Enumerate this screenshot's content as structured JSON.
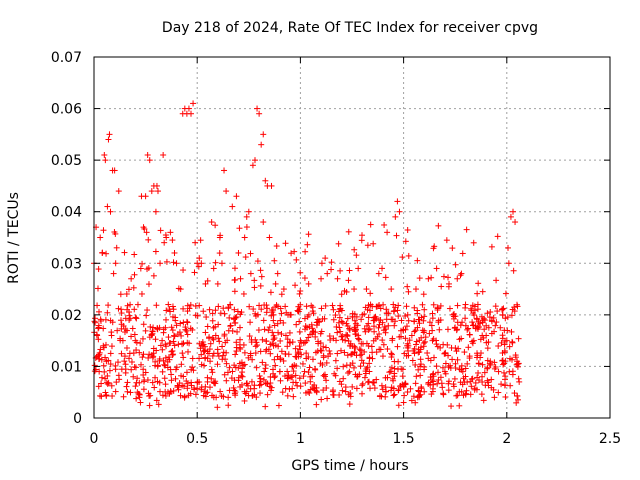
{
  "chart_data": {
    "type": "scatter",
    "title": "Day 218 of 2024, Rate Of TEC Index for receiver cpvg",
    "xlabel": "GPS time / hours",
    "ylabel": "ROTI / TECUs",
    "xlim": [
      0,
      2.5
    ],
    "ylim": [
      0,
      0.07
    ],
    "grid": true,
    "marker": "+",
    "color": "#ff0000",
    "xticks": [
      0,
      0.5,
      1,
      1.5,
      2,
      2.5
    ],
    "xtick_labels": [
      "0",
      "0.5",
      "1",
      "1.5",
      "2",
      "2.5"
    ],
    "yticks": [
      0,
      0.01,
      0.02,
      0.03,
      0.04,
      0.05,
      0.06,
      0.07
    ],
    "ytick_labels": [
      "0",
      "0.01",
      "0.02",
      "0.03",
      "0.04",
      "0.05",
      "0.06",
      "0.07"
    ],
    "series": [
      {
        "name": "ROTI",
        "points": [
          [
            0.0,
            0.03
          ],
          [
            0.01,
            0.037
          ],
          [
            0.015,
            0.016
          ],
          [
            0.02,
            0.012
          ],
          [
            0.025,
            0.009
          ],
          [
            0.03,
            0.035
          ],
          [
            0.04,
            0.032
          ],
          [
            0.045,
            0.014
          ],
          [
            0.05,
            0.051
          ],
          [
            0.055,
            0.05
          ],
          [
            0.06,
            0.011
          ],
          [
            0.065,
            0.041
          ],
          [
            0.07,
            0.054
          ],
          [
            0.075,
            0.055
          ],
          [
            0.08,
            0.04
          ],
          [
            0.085,
            0.016
          ],
          [
            0.09,
            0.048
          ],
          [
            0.095,
            0.028
          ],
          [
            0.1,
            0.048
          ],
          [
            0.105,
            0.03
          ],
          [
            0.11,
            0.033
          ],
          [
            0.12,
            0.044
          ],
          [
            0.13,
            0.024
          ],
          [
            0.14,
            0.015
          ],
          [
            0.15,
            0.012
          ],
          [
            0.16,
            0.021
          ],
          [
            0.17,
            0.019
          ],
          [
            0.18,
            0.027
          ],
          [
            0.19,
            0.008
          ],
          [
            0.2,
            0.015
          ],
          [
            0.21,
            0.005
          ],
          [
            0.22,
            0.004
          ],
          [
            0.225,
            0.003
          ],
          [
            0.23,
            0.043
          ],
          [
            0.24,
            0.037
          ],
          [
            0.25,
            0.043
          ],
          [
            0.255,
            0.036
          ],
          [
            0.26,
            0.051
          ],
          [
            0.27,
            0.05
          ],
          [
            0.28,
            0.044
          ],
          [
            0.29,
            0.045
          ],
          [
            0.3,
            0.04
          ],
          [
            0.305,
            0.045
          ],
          [
            0.31,
            0.044
          ],
          [
            0.32,
            0.03
          ],
          [
            0.33,
            0.015
          ],
          [
            0.335,
            0.051
          ],
          [
            0.34,
            0.034
          ],
          [
            0.35,
            0.035
          ],
          [
            0.36,
            0.022
          ],
          [
            0.37,
            0.036
          ],
          [
            0.38,
            0.013
          ],
          [
            0.39,
            0.032
          ],
          [
            0.4,
            0.03
          ],
          [
            0.41,
            0.006
          ],
          [
            0.42,
            0.025
          ],
          [
            0.43,
            0.059
          ],
          [
            0.44,
            0.06
          ],
          [
            0.45,
            0.059
          ],
          [
            0.46,
            0.06
          ],
          [
            0.47,
            0.059
          ],
          [
            0.48,
            0.061
          ],
          [
            0.49,
            0.034
          ],
          [
            0.5,
            0.03
          ],
          [
            0.51,
            0.031
          ],
          [
            0.52,
            0.03
          ],
          [
            0.53,
            0.013
          ],
          [
            0.54,
            0.026
          ],
          [
            0.55,
            0.007
          ],
          [
            0.56,
            0.021
          ],
          [
            0.57,
            0.038
          ],
          [
            0.58,
            0.029
          ],
          [
            0.59,
            0.016
          ],
          [
            0.6,
            0.026
          ],
          [
            0.61,
            0.035
          ],
          [
            0.62,
            0.03
          ],
          [
            0.63,
            0.048
          ],
          [
            0.64,
            0.044
          ],
          [
            0.65,
            0.004
          ],
          [
            0.66,
            0.022
          ],
          [
            0.67,
            0.041
          ],
          [
            0.68,
            0.021
          ],
          [
            0.69,
            0.043
          ],
          [
            0.7,
            0.032
          ],
          [
            0.71,
            0.027
          ],
          [
            0.72,
            0.008
          ],
          [
            0.73,
            0.035
          ],
          [
            0.74,
            0.039
          ],
          [
            0.75,
            0.04
          ],
          [
            0.76,
            0.028
          ],
          [
            0.77,
            0.049
          ],
          [
            0.78,
            0.05
          ],
          [
            0.79,
            0.06
          ],
          [
            0.8,
            0.059
          ],
          [
            0.81,
            0.053
          ],
          [
            0.82,
            0.055
          ],
          [
            0.83,
            0.046
          ],
          [
            0.84,
            0.045
          ],
          [
            0.85,
            0.035
          ],
          [
            0.86,
            0.045
          ],
          [
            0.87,
            0.014
          ],
          [
            0.88,
            0.026
          ],
          [
            0.89,
            0.028
          ],
          [
            0.9,
            0.009
          ],
          [
            0.91,
            0.024
          ],
          [
            0.92,
            0.025
          ],
          [
            0.93,
            0.016
          ],
          [
            0.94,
            0.02
          ],
          [
            0.95,
            0.02
          ],
          [
            0.96,
            0.008
          ],
          [
            1.0,
            0.015
          ],
          [
            1.02,
            0.009
          ],
          [
            1.04,
            0.026
          ],
          [
            1.06,
            0.006
          ],
          [
            1.08,
            0.018
          ],
          [
            1.1,
            0.027
          ],
          [
            1.12,
            0.031
          ],
          [
            1.13,
            0.028
          ],
          [
            1.14,
            0.013
          ],
          [
            1.16,
            0.021
          ],
          [
            1.18,
            0.027
          ],
          [
            1.2,
            0.024
          ],
          [
            1.22,
            0.006
          ],
          [
            1.24,
            0.014
          ],
          [
            1.26,
            0.025
          ],
          [
            1.28,
            0.029
          ],
          [
            1.3,
            0.02
          ],
          [
            1.32,
            0.025
          ],
          [
            1.34,
            0.022
          ],
          [
            1.36,
            0.019
          ],
          [
            1.38,
            0.028
          ],
          [
            1.4,
            0.012
          ],
          [
            1.42,
            0.036
          ],
          [
            1.44,
            0.025
          ],
          [
            1.45,
            0.022
          ],
          [
            1.46,
            0.039
          ],
          [
            1.47,
            0.042
          ],
          [
            1.48,
            0.04
          ],
          [
            1.5,
            0.003
          ],
          [
            1.52,
            0.02
          ],
          [
            1.54,
            0.016
          ],
          [
            1.56,
            0.025
          ],
          [
            1.58,
            0.01
          ],
          [
            1.6,
            0.021
          ],
          [
            1.62,
            0.027
          ],
          [
            1.64,
            0.015
          ],
          [
            1.66,
            0.029
          ],
          [
            1.68,
            0.019
          ],
          [
            1.7,
            0.009
          ],
          [
            1.72,
            0.026
          ],
          [
            1.74,
            0.02
          ],
          [
            1.76,
            0.027
          ],
          [
            1.78,
            0.028
          ],
          [
            1.8,
            0.022
          ],
          [
            1.82,
            0.012
          ],
          [
            1.84,
            0.015
          ],
          [
            1.86,
            0.022
          ],
          [
            1.88,
            0.008
          ],
          [
            1.9,
            0.016
          ],
          [
            1.92,
            0.011
          ],
          [
            1.94,
            0.004
          ],
          [
            1.96,
            0.009
          ],
          [
            1.98,
            0.02
          ],
          [
            2.0,
            0.015
          ],
          [
            2.01,
            0.03
          ],
          [
            2.02,
            0.039
          ],
          [
            2.03,
            0.04
          ],
          [
            2.04,
            0.038
          ],
          [
            2.05,
            0.011
          ],
          [
            2.06,
            0.007
          ]
        ],
        "band": {
          "x_range": [
            0,
            2.06
          ],
          "dense_y_range": [
            0.004,
            0.022
          ],
          "count": 1400
        }
      }
    ]
  }
}
